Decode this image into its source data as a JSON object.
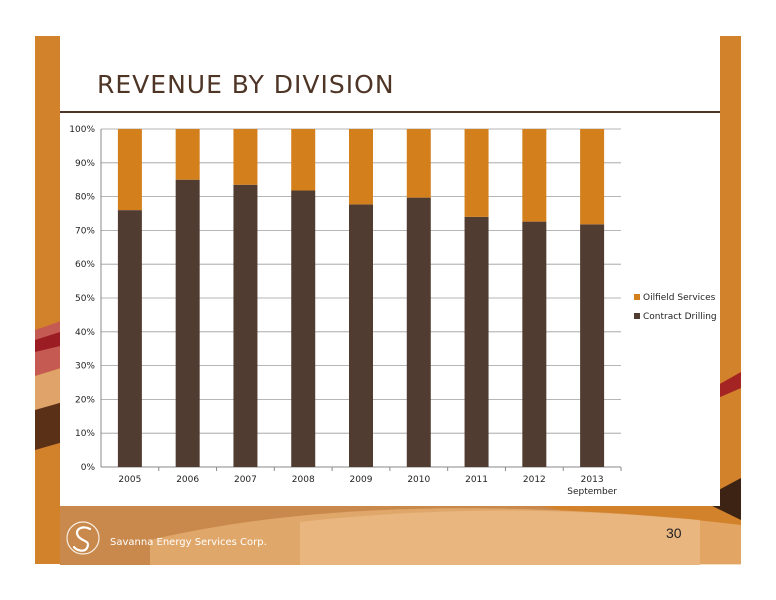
{
  "slide": {
    "title": "REVENUE BY DIVISION",
    "page_number": "30",
    "company_name": "Savanna Energy Services Corp."
  },
  "chart_data": {
    "type": "bar",
    "stacked": true,
    "percent": true,
    "categories": [
      "2005",
      "2006",
      "2007",
      "2008",
      "2009",
      "2010",
      "2011",
      "2012",
      "2013\nSeptember"
    ],
    "series": [
      {
        "name": "Contract Drilling",
        "color": "#513c32",
        "values": [
          76,
          85,
          83.5,
          81.8,
          77.7,
          79.7,
          74,
          72.6,
          71.8
        ]
      },
      {
        "name": "Oilfield Services",
        "color": "#d27f1c",
        "values": [
          24,
          15,
          16.5,
          18.2,
          22.3,
          20.3,
          26,
          27.4,
          28.2
        ]
      }
    ],
    "yticks": [
      "0%",
      "10%",
      "20%",
      "30%",
      "40%",
      "50%",
      "60%",
      "70%",
      "80%",
      "90%",
      "100%"
    ],
    "ylim": [
      0,
      100
    ],
    "legend": "right",
    "legend_order": [
      "Oilfield Services",
      "Contract Drilling"
    ],
    "grid": true
  }
}
